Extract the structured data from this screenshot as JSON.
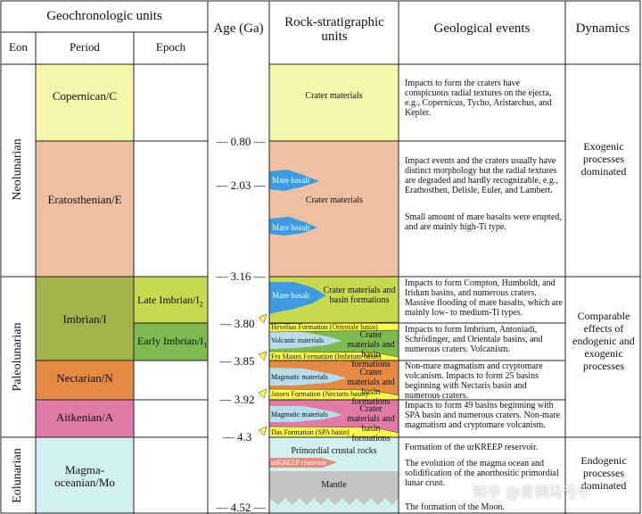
{
  "headers": {
    "geochronologic_units": "Geochronologic units",
    "eon": "Eon",
    "period": "Period",
    "epoch": "Epoch",
    "age": "Age (Ga)",
    "rock_units": "Rock-stratigraphic units",
    "geological_events": "Geological events",
    "dynamics": "Dynamics"
  },
  "eons": [
    "Neolunarian",
    "Paleolunarian",
    "Eolunarian"
  ],
  "periods": {
    "copernican": "Copernican/C",
    "eratosthenian": "Eratosthenian/E",
    "imbrian": "Imbrian/I",
    "nectarian": "Nectarian/N",
    "aitkenian": "Aitkenian/A",
    "magma_oceanian": "Magma-oceanian/Mo"
  },
  "epochs": {
    "late_imbrian": "Late Imbrian/I",
    "late_imbrian_sub": "2",
    "early_imbrian": "Early Imbrian/I",
    "early_imbrian_sub": "1"
  },
  "ages": [
    "— 0.80 —",
    "— 2.03 —",
    "— 3.16 —",
    "— 3.80",
    "— 3.85",
    "— 3.92",
    "— 4.3",
    "— 4.52 —"
  ],
  "rock_units": {
    "crater_materials": "Crater materials",
    "mare_basalt": "Mare basalt",
    "crater_basin": "Crater materials and basin formations",
    "hevelius": "Hevelius Formation (Orientale basin)",
    "volcanic_materials": "Volcanic materials",
    "fra_mauro": "Fra Mauro Formation (Imbrium basin)",
    "magmatic_materials": "Magmatic materials",
    "jansen": "Jassen Formation (Nectaris basin)",
    "das": "Das Formation (SPA basin)",
    "primordial": "Primordial crustal rocks",
    "urkreep": "urKREEP reservoir",
    "mantle": "Mantle"
  },
  "events": {
    "copernican": "Impacts to form the craters have conspicuous radial textures on the ejecta, e.g., Copernicus, Tycho, Aristarchus, and Kepler.",
    "eratosthenian_1": "Impact events and the craters usually have distinct morphology but the radial textures are degraded and hardly recognizable, e.g., Erathosthen, Delisle, Euler, and Lambert.",
    "eratosthenian_2": "Small amount of mare basalts were erupted, and are mainly high-Ti type.",
    "late_imbrian": "Impacts to form Compton, Humboldt, and Iridum basins, and numerous craters. Massive flooding of mare basalts, which are mainly low- to medium-Ti types.",
    "early_imbrian": "Impacts to form Imbrium, Antoniadi, Schrödinger, and Orientale basins, and numerous craters. Volcanism.",
    "nectarian": "Non-mare magmatism and cryptomare volcanism. Impacts to form 25 basins beginning with Nectaris basin and numerous craters.",
    "aitkenian": "Impacts to form 49 basins beginning with SPA basin and numerous craters. Non-mare magmatism and cryptomare volcanism.",
    "magma_1": "Formation of the urKREEP reservoir.",
    "magma_2": "The evolution of the magma ocean and solidification of the anorthositic primordial lunar crust.",
    "magma_3": "The formation of the Moon."
  },
  "dynamics": {
    "exogenic": "Exogenic processes dominated",
    "comparable": "Comparable effects of endogenic and exogenic processes",
    "endogenic": "Endogenic processes dominated"
  },
  "watermark": "知乎 @青铜马亏手",
  "colors": {
    "copernican": "#f4f7a9",
    "eratosthenian": "#efbfa1",
    "imbrian": "#a3b24a",
    "late_imbrian": "#c8d84f",
    "early_imbrian": "#7fba50",
    "nectarian": "#e48a45",
    "aitkenian": "#e17aa7",
    "magma_oceanian": "#d3f0f1",
    "mare_basalt": "#3d9be0",
    "formation_yellow": "#ffff4a",
    "mantle": "#c4c4c4"
  }
}
